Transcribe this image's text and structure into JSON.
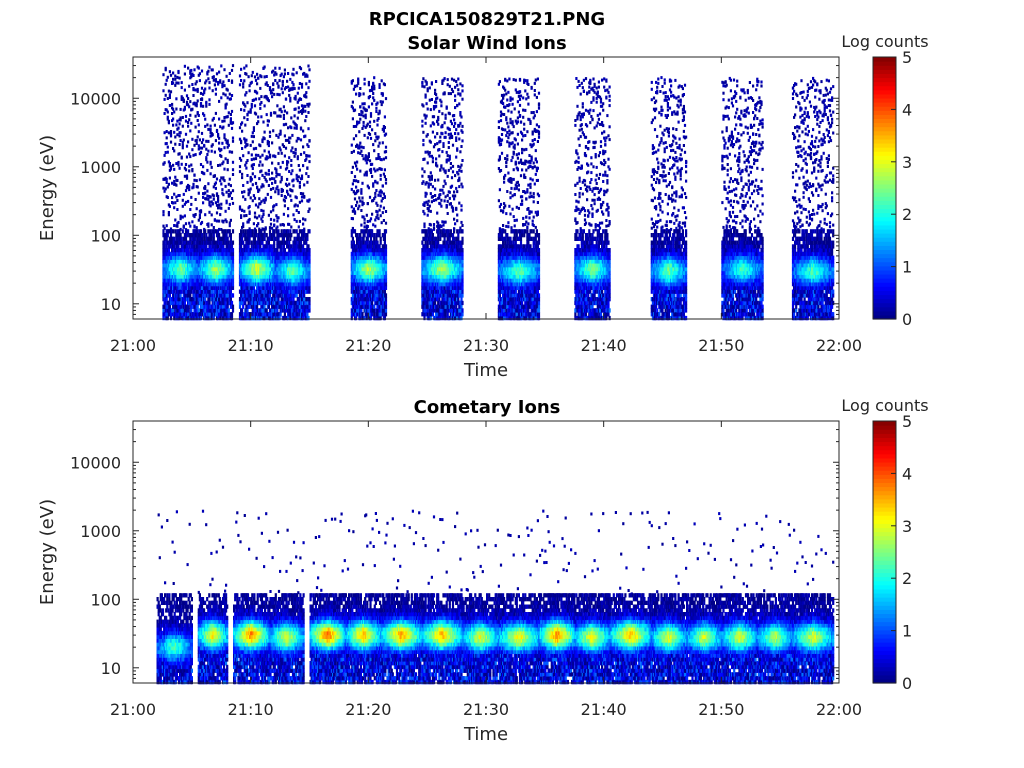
{
  "figure": {
    "title": "RPCICA150829T21.PNG"
  },
  "chart_data": [
    {
      "type": "heatmap",
      "title": "Solar Wind Ions",
      "xlabel": "Time",
      "ylabel": "Energy (eV)",
      "x_ticks": [
        "21:00",
        "21:10",
        "21:20",
        "21:30",
        "21:40",
        "21:50",
        "22:00"
      ],
      "x_range": [
        "21:00",
        "22:00"
      ],
      "y_scale": "log",
      "y_ticks": [
        "10",
        "100",
        "1000",
        "10000"
      ],
      "y_range": [
        6,
        40000
      ],
      "colorbar": {
        "label": "Log counts",
        "range": [
          0,
          5
        ],
        "ticks": [
          "0",
          "1",
          "2",
          "3",
          "4",
          "5"
        ],
        "colormap": "jet"
      },
      "bursts": [
        {
          "start": "21:02.5",
          "end": "21:05.5",
          "peak_energy_eV": 32,
          "peak_log_counts": 2.5,
          "high_energy_spread_eV": 30000
        },
        {
          "start": "21:05.5",
          "end": "21:08.5",
          "peak_energy_eV": 32,
          "peak_log_counts": 2.7,
          "high_energy_spread_eV": 30000
        },
        {
          "start": "21:09.0",
          "end": "21:12.0",
          "peak_energy_eV": 32,
          "peak_log_counts": 3.0,
          "high_energy_spread_eV": 30000
        },
        {
          "start": "21:12.0",
          "end": "21:15.0",
          "peak_energy_eV": 30,
          "peak_log_counts": 2.4,
          "high_energy_spread_eV": 30000
        },
        {
          "start": "21:18.5",
          "end": "21:21.5",
          "peak_energy_eV": 32,
          "peak_log_counts": 2.8,
          "high_energy_spread_eV": 20000
        },
        {
          "start": "21:24.5",
          "end": "21:28.0",
          "peak_energy_eV": 32,
          "peak_log_counts": 2.8,
          "high_energy_spread_eV": 20000
        },
        {
          "start": "21:31.0",
          "end": "21:34.5",
          "peak_energy_eV": 30,
          "peak_log_counts": 2.4,
          "high_energy_spread_eV": 20000
        },
        {
          "start": "21:37.5",
          "end": "21:40.5",
          "peak_energy_eV": 32,
          "peak_log_counts": 2.6,
          "high_energy_spread_eV": 20000
        },
        {
          "start": "21:44.0",
          "end": "21:47.0",
          "peak_energy_eV": 30,
          "peak_log_counts": 2.5,
          "high_energy_spread_eV": 20000
        },
        {
          "start": "21:50.0",
          "end": "21:53.5",
          "peak_energy_eV": 32,
          "peak_log_counts": 2.2,
          "high_energy_spread_eV": 20000
        },
        {
          "start": "21:56.0",
          "end": "21:59.5",
          "peak_energy_eV": 30,
          "peak_log_counts": 2.3,
          "high_energy_spread_eV": 20000
        }
      ]
    },
    {
      "type": "heatmap",
      "title": "Cometary Ions",
      "xlabel": "Time",
      "ylabel": "Energy (eV)",
      "x_ticks": [
        "21:00",
        "21:10",
        "21:20",
        "21:30",
        "21:40",
        "21:50",
        "22:00"
      ],
      "x_range": [
        "21:00",
        "22:00"
      ],
      "y_scale": "log",
      "y_ticks": [
        "10",
        "100",
        "1000",
        "10000"
      ],
      "y_range": [
        6,
        40000
      ],
      "colorbar": {
        "label": "Log counts",
        "range": [
          0,
          5
        ],
        "ticks": [
          "0",
          "1",
          "2",
          "3",
          "4",
          "5"
        ],
        "colormap": "jet"
      },
      "bursts": [
        {
          "start": "21:02.0",
          "end": "21:05.0",
          "peak_energy_eV": 20,
          "peak_log_counts": 2.3
        },
        {
          "start": "21:05.5",
          "end": "21:08.0",
          "peak_energy_eV": 30,
          "peak_log_counts": 3.3
        },
        {
          "start": "21:08.5",
          "end": "21:11.5",
          "peak_energy_eV": 30,
          "peak_log_counts": 3.8
        },
        {
          "start": "21:11.5",
          "end": "21:14.5",
          "peak_energy_eV": 28,
          "peak_log_counts": 3.0
        },
        {
          "start": "21:15.0",
          "end": "21:18.0",
          "peak_energy_eV": 30,
          "peak_log_counts": 3.9
        },
        {
          "start": "21:18.0",
          "end": "21:21.0",
          "peak_energy_eV": 30,
          "peak_log_counts": 3.5
        },
        {
          "start": "21:21.0",
          "end": "21:24.5",
          "peak_energy_eV": 30,
          "peak_log_counts": 3.6
        },
        {
          "start": "21:24.5",
          "end": "21:28.0",
          "peak_energy_eV": 30,
          "peak_log_counts": 3.5
        },
        {
          "start": "21:28.0",
          "end": "21:31.0",
          "peak_energy_eV": 28,
          "peak_log_counts": 3.1
        },
        {
          "start": "21:31.0",
          "end": "21:34.5",
          "peak_energy_eV": 28,
          "peak_log_counts": 3.2
        },
        {
          "start": "21:34.5",
          "end": "21:37.5",
          "peak_energy_eV": 30,
          "peak_log_counts": 3.8
        },
        {
          "start": "21:37.5",
          "end": "21:40.5",
          "peak_energy_eV": 28,
          "peak_log_counts": 3.2
        },
        {
          "start": "21:40.5",
          "end": "21:44.0",
          "peak_energy_eV": 30,
          "peak_log_counts": 3.5
        },
        {
          "start": "21:44.0",
          "end": "21:47.0",
          "peak_energy_eV": 28,
          "peak_log_counts": 3.0
        },
        {
          "start": "21:47.0",
          "end": "21:50.0",
          "peak_energy_eV": 28,
          "peak_log_counts": 2.9
        },
        {
          "start": "21:50.0",
          "end": "21:53.0",
          "peak_energy_eV": 28,
          "peak_log_counts": 3.0
        },
        {
          "start": "21:53.0",
          "end": "21:56.0",
          "peak_energy_eV": 28,
          "peak_log_counts": 2.8
        },
        {
          "start": "21:56.0",
          "end": "21:59.5",
          "peak_energy_eV": 28,
          "peak_log_counts": 3.0
        }
      ]
    }
  ]
}
